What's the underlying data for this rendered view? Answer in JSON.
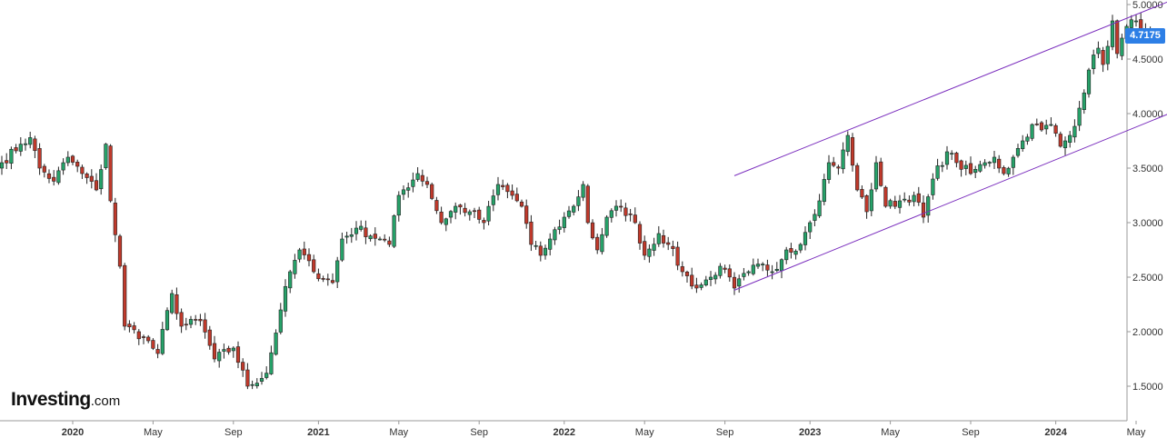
{
  "chart_data": {
    "type": "candlestick",
    "y_axis": {
      "position": "right",
      "ylim": [
        1.36,
        5.04
      ],
      "ticks": [
        {
          "value": 5.0,
          "label": "5.0000"
        },
        {
          "value": 4.5,
          "label": "4.5000"
        },
        {
          "value": 4.0,
          "label": "4.0000"
        },
        {
          "value": 3.5,
          "label": "3.5000"
        },
        {
          "value": 3.0,
          "label": "3.0000"
        },
        {
          "value": 2.5,
          "label": "2.5000"
        },
        {
          "value": 2.0,
          "label": "2.0000"
        },
        {
          "value": 1.5,
          "label": "1.5000"
        }
      ]
    },
    "x_axis": {
      "start_index": 0,
      "end_index": 236,
      "ticks": [
        {
          "index": 15,
          "label": "2020",
          "major": true
        },
        {
          "index": 32,
          "label": "May",
          "major": false
        },
        {
          "index": 49,
          "label": "Sep",
          "major": false
        },
        {
          "index": 67,
          "label": "2021",
          "major": true
        },
        {
          "index": 84,
          "label": "May",
          "major": false
        },
        {
          "index": 101,
          "label": "Sep",
          "major": false
        },
        {
          "index": 119,
          "label": "2022",
          "major": true
        },
        {
          "index": 136,
          "label": "May",
          "major": false
        },
        {
          "index": 153,
          "label": "Sep",
          "major": false
        },
        {
          "index": 171,
          "label": "2023",
          "major": true
        },
        {
          "index": 188,
          "label": "May",
          "major": false
        },
        {
          "index": 205,
          "label": "Sep",
          "major": false
        },
        {
          "index": 223,
          "label": "2024",
          "major": true
        },
        {
          "index": 240,
          "label": "May",
          "major": false
        }
      ]
    },
    "anchors": [
      {
        "i": 0,
        "v": 3.55
      },
      {
        "i": 4,
        "v": 3.72
      },
      {
        "i": 6,
        "v": 3.78
      },
      {
        "i": 8,
        "v": 3.5
      },
      {
        "i": 11,
        "v": 3.38
      },
      {
        "i": 14,
        "v": 3.6
      },
      {
        "i": 17,
        "v": 3.45
      },
      {
        "i": 20,
        "v": 3.3
      },
      {
        "i": 22,
        "v": 3.72
      },
      {
        "i": 23,
        "v": 3.2
      },
      {
        "i": 25,
        "v": 2.6
      },
      {
        "i": 26,
        "v": 2.05
      },
      {
        "i": 30,
        "v": 1.95
      },
      {
        "i": 33,
        "v": 1.8
      },
      {
        "i": 36,
        "v": 2.35
      },
      {
        "i": 38,
        "v": 2.05
      },
      {
        "i": 42,
        "v": 2.1
      },
      {
        "i": 45,
        "v": 1.75
      },
      {
        "i": 49,
        "v": 1.85
      },
      {
        "i": 52,
        "v": 1.5
      },
      {
        "i": 56,
        "v": 1.62
      },
      {
        "i": 59,
        "v": 2.2
      },
      {
        "i": 61,
        "v": 2.55
      },
      {
        "i": 63,
        "v": 2.75
      },
      {
        "i": 66,
        "v": 2.55
      },
      {
        "i": 70,
        "v": 2.45
      },
      {
        "i": 72,
        "v": 2.85
      },
      {
        "i": 75,
        "v": 2.95
      },
      {
        "i": 80,
        "v": 2.85
      },
      {
        "i": 82,
        "v": 2.8
      },
      {
        "i": 84,
        "v": 3.25
      },
      {
        "i": 88,
        "v": 3.45
      },
      {
        "i": 90,
        "v": 3.35
      },
      {
        "i": 93,
        "v": 3.0
      },
      {
        "i": 96,
        "v": 3.15
      },
      {
        "i": 99,
        "v": 3.1
      },
      {
        "i": 102,
        "v": 3.0
      },
      {
        "i": 105,
        "v": 3.35
      },
      {
        "i": 108,
        "v": 3.25
      },
      {
        "i": 110,
        "v": 3.15
      },
      {
        "i": 112,
        "v": 2.8
      },
      {
        "i": 114,
        "v": 2.7
      },
      {
        "i": 116,
        "v": 2.85
      },
      {
        "i": 119,
        "v": 3.05
      },
      {
        "i": 121,
        "v": 3.15
      },
      {
        "i": 123,
        "v": 3.35
      },
      {
        "i": 124,
        "v": 3.0
      },
      {
        "i": 126,
        "v": 2.75
      },
      {
        "i": 128,
        "v": 3.05
      },
      {
        "i": 131,
        "v": 3.15
      },
      {
        "i": 134,
        "v": 3.0
      },
      {
        "i": 136,
        "v": 2.7
      },
      {
        "i": 139,
        "v": 2.9
      },
      {
        "i": 141,
        "v": 2.8
      },
      {
        "i": 144,
        "v": 2.55
      },
      {
        "i": 147,
        "v": 2.4
      },
      {
        "i": 150,
        "v": 2.5
      },
      {
        "i": 152,
        "v": 2.6
      },
      {
        "i": 155,
        "v": 2.4
      },
      {
        "i": 158,
        "v": 2.55
      },
      {
        "i": 161,
        "v": 2.62
      },
      {
        "i": 163,
        "v": 2.55
      },
      {
        "i": 166,
        "v": 2.75
      },
      {
        "i": 169,
        "v": 2.8
      },
      {
        "i": 171,
        "v": 3.0
      },
      {
        "i": 173,
        "v": 3.2
      },
      {
        "i": 175,
        "v": 3.55
      },
      {
        "i": 177,
        "v": 3.5
      },
      {
        "i": 179,
        "v": 3.8
      },
      {
        "i": 181,
        "v": 3.3
      },
      {
        "i": 183,
        "v": 3.1
      },
      {
        "i": 185,
        "v": 3.55
      },
      {
        "i": 187,
        "v": 3.15
      },
      {
        "i": 190,
        "v": 3.2
      },
      {
        "i": 193,
        "v": 3.25
      },
      {
        "i": 195,
        "v": 3.05
      },
      {
        "i": 197,
        "v": 3.4
      },
      {
        "i": 200,
        "v": 3.65
      },
      {
        "i": 202,
        "v": 3.55
      },
      {
        "i": 205,
        "v": 3.45
      },
      {
        "i": 208,
        "v": 3.55
      },
      {
        "i": 210,
        "v": 3.6
      },
      {
        "i": 212,
        "v": 3.45
      },
      {
        "i": 214,
        "v": 3.6
      },
      {
        "i": 216,
        "v": 3.75
      },
      {
        "i": 218,
        "v": 3.9
      },
      {
        "i": 220,
        "v": 3.85
      },
      {
        "i": 222,
        "v": 3.9
      },
      {
        "i": 224,
        "v": 3.7
      },
      {
        "i": 226,
        "v": 3.8
      },
      {
        "i": 228,
        "v": 4.05
      },
      {
        "i": 230,
        "v": 4.4
      },
      {
        "i": 232,
        "v": 4.6
      },
      {
        "i": 233,
        "v": 4.45
      },
      {
        "i": 235,
        "v": 4.85
      },
      {
        "i": 236,
        "v": 4.55
      },
      {
        "i": 238,
        "v": 4.8
      },
      {
        "i": 240,
        "v": 4.85
      },
      {
        "i": 242,
        "v": 4.75
      },
      {
        "i": 243,
        "v": 4.7175
      }
    ],
    "channel_lines": [
      {
        "name": "upper",
        "start": {
          "i": 155,
          "v": 3.43
        },
        "end": {
          "i": 247,
          "v": 5.03
        }
      },
      {
        "name": "lower",
        "start": {
          "i": 155,
          "v": 2.38
        },
        "end": {
          "i": 247,
          "v": 4.0
        }
      }
    ],
    "last_price": "4.7175",
    "grid": false,
    "colors": {
      "up": "#26a269",
      "down": "#c0392b",
      "channel": "#7b2fbe",
      "price_tag": "#2d7fe6"
    }
  },
  "branding": {
    "brand": "Investing",
    "suffix": ".com"
  }
}
